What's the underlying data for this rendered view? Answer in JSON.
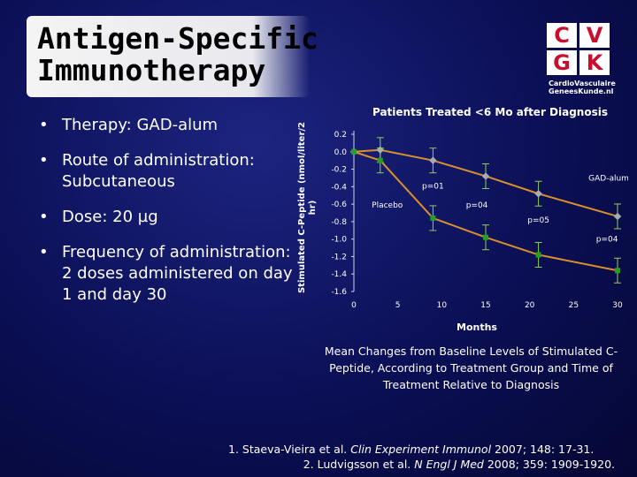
{
  "slide": {
    "title_lines": [
      "Antigen-Specific",
      "Immunotherapy"
    ],
    "bullets": [
      "Therapy: GAD-alum",
      "Route of administration: Subcutaneous",
      "Dose: 20 µg",
      "Frequency of administration: 2 doses administered on day 1 and day 30"
    ],
    "bullet_symbol": "•",
    "caption": "Mean Changes from Baseline Levels of Stimulated C-Peptide, According to Treatment Group and Time of Treatment Relative to Diagnosis",
    "references": [
      {
        "pre": "1. Staeva-Vieira et al. ",
        "journal": "Clin Experiment Immunol",
        "post": " 2007; 148: 17-31."
      },
      {
        "pre": "2. Ludvigsson et al. ",
        "journal": "N Engl J Med",
        "post": " 2008; 359: 1909-1920."
      }
    ]
  },
  "logo": {
    "letters": [
      "C",
      "V",
      "G",
      "K"
    ],
    "text_lines": [
      "CardioVasculaire",
      "GeneesKunde.nl"
    ],
    "color": "#c8102e"
  },
  "chart_data": {
    "type": "line",
    "title": "Patients Treated <6 Mo after Diagnosis",
    "xlabel": "Months",
    "ylabel": "Stimulated C-Peptide (nmol/liter/2 hr)",
    "xlim": [
      0,
      30
    ],
    "ylim": [
      -1.6,
      0.2
    ],
    "x_ticks": [
      0,
      5,
      10,
      15,
      20,
      25,
      30
    ],
    "y_ticks": [
      0.2,
      0.0,
      -0.2,
      -0.4,
      -0.6,
      -0.8,
      -1.0,
      -1.2,
      -1.4,
      -1.6
    ],
    "y_tick_labels": [
      "0.2",
      "0.0",
      "-0.2",
      "-0.4",
      "-0.6",
      "-0.8",
      "-1.0",
      "-1.2",
      "-1.4",
      "-1.6"
    ],
    "series": [
      {
        "name": "GAD-alum",
        "color": "#a9abb3",
        "x": [
          0,
          3,
          9,
          15,
          21,
          30
        ],
        "y": [
          0.0,
          0.02,
          -0.1,
          -0.28,
          -0.48,
          -0.74
        ]
      },
      {
        "name": "Placebo",
        "color": "#22a025",
        "x": [
          0,
          3,
          9,
          15,
          21,
          30
        ],
        "y": [
          0.0,
          -0.1,
          -0.76,
          -0.98,
          -1.18,
          -1.36
        ]
      }
    ],
    "line_color": "#d8902a",
    "grid": false,
    "annotations": [
      {
        "text": "GAD-alum",
        "x": 29,
        "y": -0.33
      },
      {
        "text": "p=01",
        "x": 9,
        "y": -0.42
      },
      {
        "text": "Placebo",
        "x": 3.8,
        "y": -0.64
      },
      {
        "text": "p=04",
        "x": 14,
        "y": -0.64
      },
      {
        "text": "p=05",
        "x": 21,
        "y": -0.81
      },
      {
        "text": "p=04",
        "x": 28.8,
        "y": -1.03
      }
    ]
  }
}
